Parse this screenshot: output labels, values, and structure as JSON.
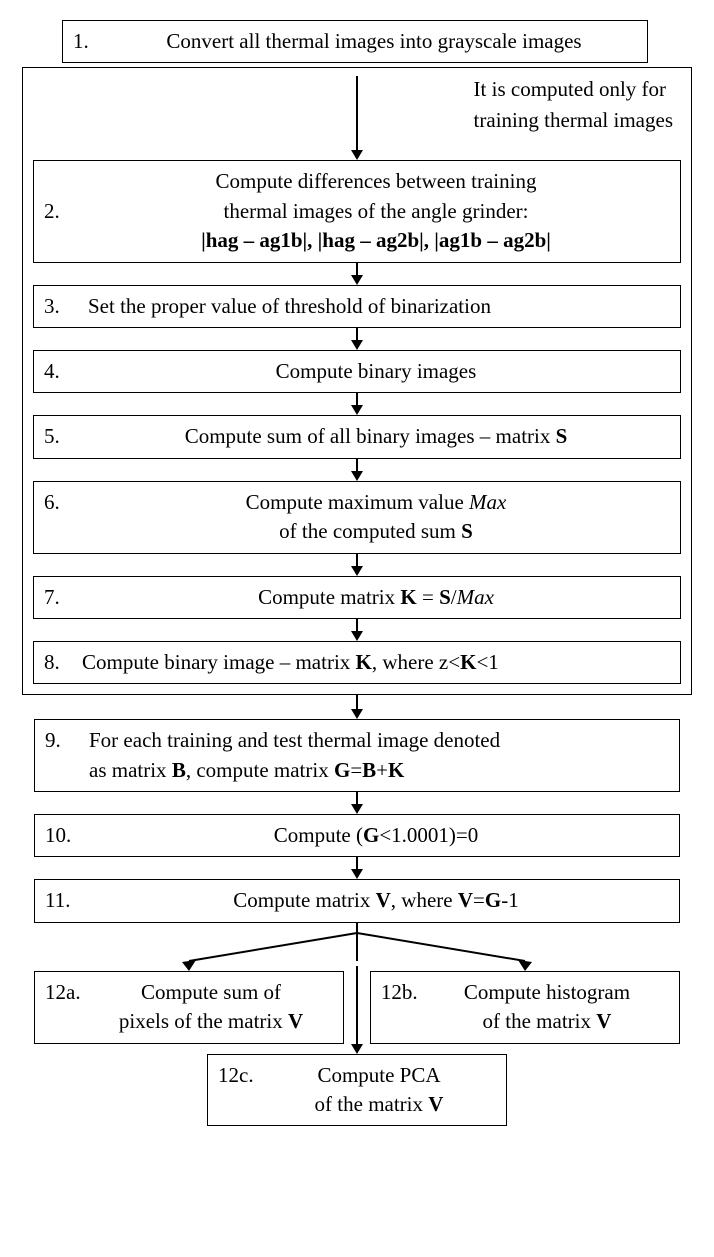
{
  "colors": {
    "border": "#000000",
    "bg": "#ffffff",
    "text": "#000000"
  },
  "fontsize": 21,
  "annotation": {
    "line1": "It is computed only for",
    "line2": "training thermal images"
  },
  "nodes": {
    "n1": {
      "num": "1.",
      "text": "Convert all thermal images into grayscale images"
    },
    "n2": {
      "num": "2.",
      "l1": "Compute differences between training",
      "l2": "thermal images of the angle grinder:",
      "l3": "|hag – ag1b|, |hag – ag2b|, |ag1b – ag2b|"
    },
    "n3": {
      "num": "3.",
      "text": "Set the proper value of threshold of binarization"
    },
    "n4": {
      "num": "4.",
      "text": "Compute binary images"
    },
    "n5": {
      "num": "5.",
      "text": "Compute sum of all binary images – matrix <b>S</b>"
    },
    "n6": {
      "num": "6.",
      "l1": "Compute maximum value <i>Max</i>",
      "l2": "of the computed sum <b>S</b>"
    },
    "n7": {
      "num": "7.",
      "text": "Compute matrix <b>K</b> = <b>S</b>/<i>Max</i>"
    },
    "n8": {
      "num": "8.",
      "text": "Compute binary image – matrix <b>K</b>, where  z&lt;<b>K</b>&lt;1"
    },
    "n9": {
      "num": "9.",
      "l1": "For each training and test  thermal image denoted",
      "l2": "as matrix <b>B</b>, compute matrix <b>G</b>=<b>B</b>+<b>K</b>"
    },
    "n10": {
      "num": "10.",
      "text": "Compute (<b>G</b>&lt;1.0001)=0"
    },
    "n11": {
      "num": "11.",
      "text": "Compute matrix <b>V</b>, where <b>V</b>=<b>G</b>-1"
    },
    "n12a": {
      "num": "12a.",
      "l1": "Compute sum of",
      "l2": "pixels of the matrix <b>V</b>"
    },
    "n12b": {
      "num": "12b.",
      "l1": "Compute histogram",
      "l2": "of the matrix <b>V</b>"
    },
    "n12c": {
      "num": "12c.",
      "l1": "Compute PCA",
      "l2": "of the matrix <b>V</b>"
    }
  },
  "arrows": {
    "short": 16,
    "long1": 78,
    "head": 10
  }
}
